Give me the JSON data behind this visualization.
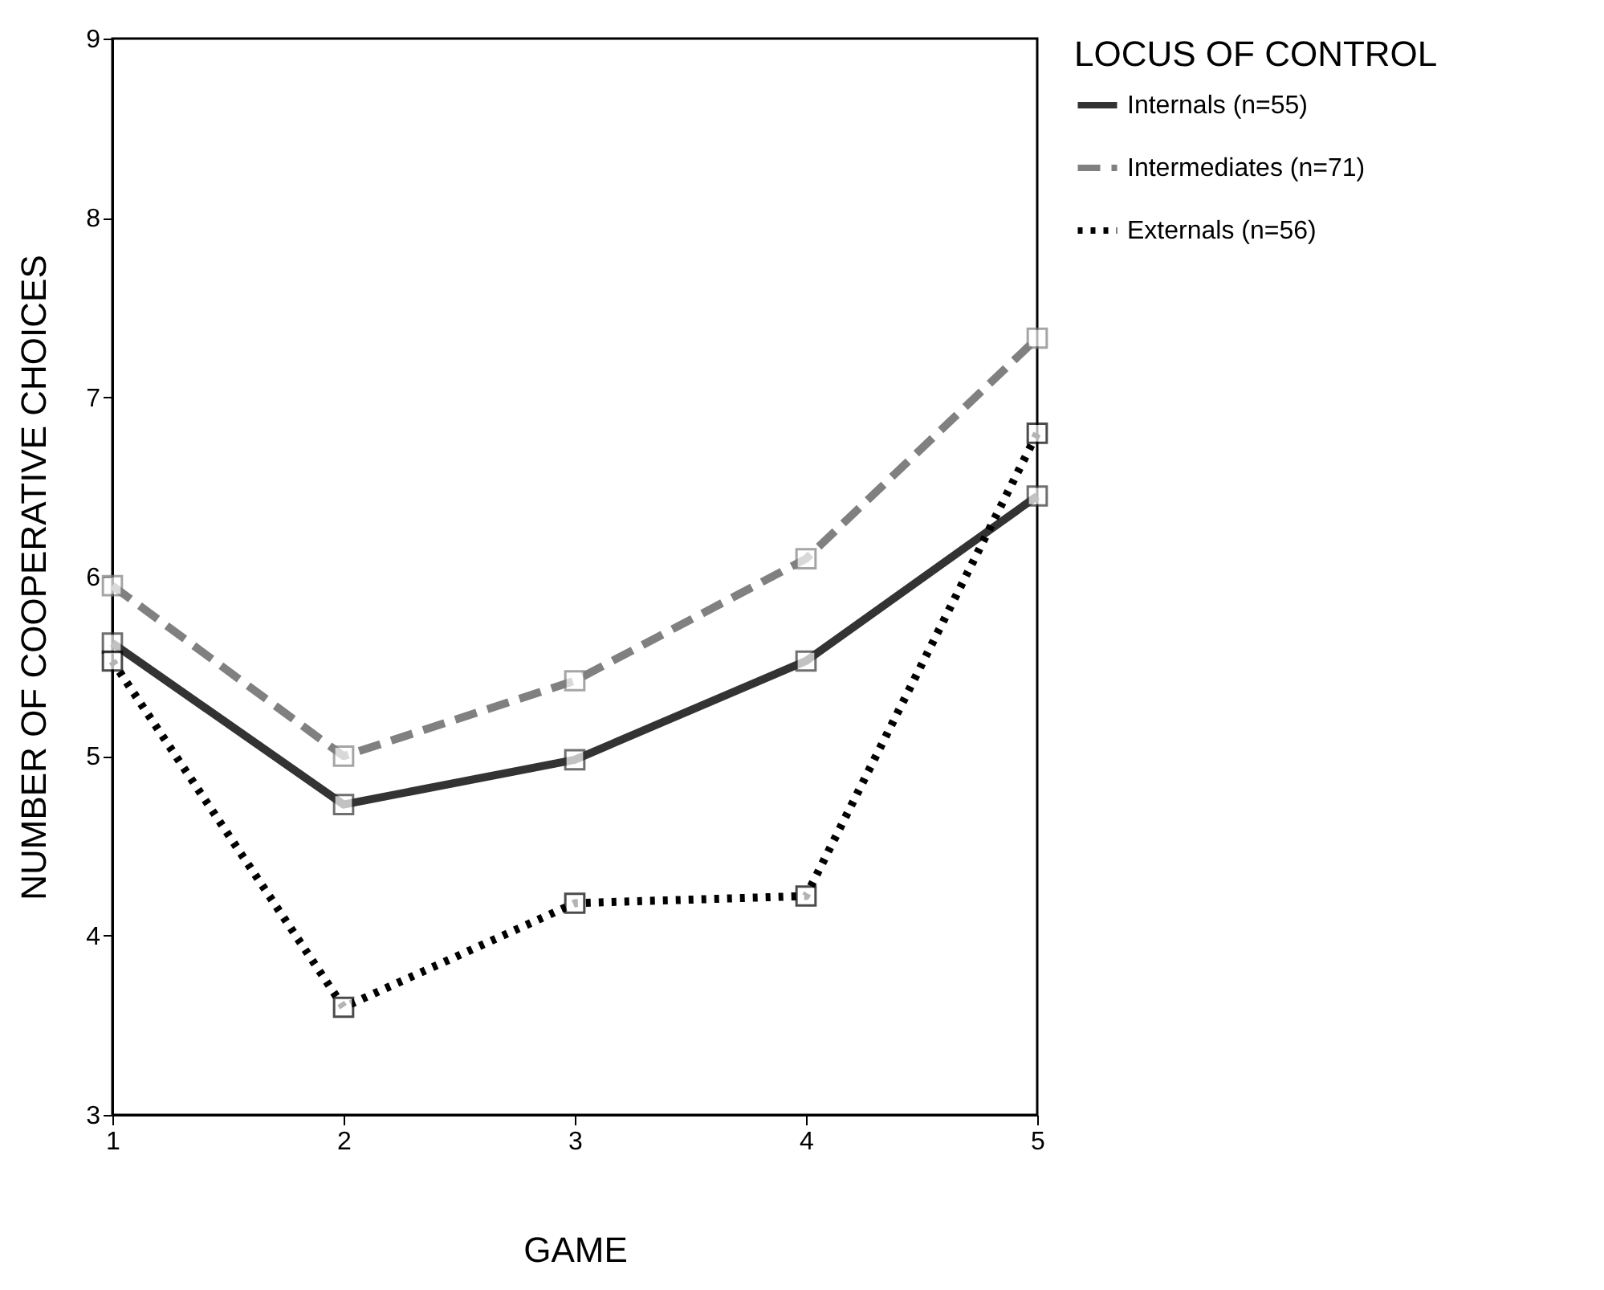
{
  "chart_data": {
    "type": "line",
    "xlabel": "GAME",
    "ylabel": "NUMBER OF COOPERATIVE CHOICES",
    "legend_title": "LOCUS OF CONTROL",
    "x": [
      1,
      2,
      3,
      4,
      5
    ],
    "xlim": [
      1,
      5
    ],
    "xticks": [
      1,
      2,
      3,
      4,
      5
    ],
    "ylim": [
      3,
      9
    ],
    "yticks": [
      3,
      4,
      5,
      6,
      7,
      8,
      9
    ],
    "grid": false,
    "legend": "right",
    "marker": "square",
    "series": [
      {
        "name": "Internals (n=55)",
        "color": "#333333",
        "line_style": "solid",
        "values": [
          5.63,
          4.73,
          4.98,
          5.53,
          6.45
        ]
      },
      {
        "name": "Intermediates (n=71)",
        "color": "#808080",
        "line_style": "dashed",
        "values": [
          5.95,
          5.0,
          5.42,
          6.1,
          7.33
        ]
      },
      {
        "name": "Externals (n=56)",
        "color": "#000000",
        "line_style": "dotted",
        "values": [
          5.53,
          3.6,
          4.18,
          4.22,
          6.8
        ]
      }
    ]
  }
}
